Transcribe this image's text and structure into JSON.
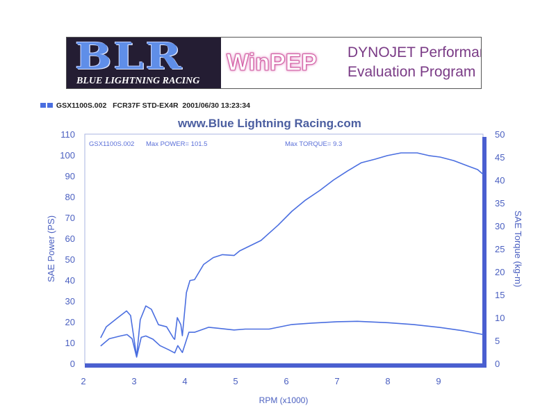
{
  "banner": {
    "logo_big": "BLR",
    "logo_small": "BLUE LIGHTNING RACING",
    "winpep": "WinPEP",
    "dynojet_line1": "DYNOJET Performance",
    "dynojet_line2": "Evaluation Program"
  },
  "legend": {
    "text": "GSX1100S.002   FCR37F STD-EX4R  2001/06/30 13:23:34"
  },
  "chart_data": {
    "type": "line",
    "title": "www.Blue Lightning Racing.com",
    "xlabel": "RPM (x1000)",
    "ylabel": "SAE Power (PS)",
    "y2label": "SAE Torque (kg-m)",
    "xlim": [
      2,
      9.9
    ],
    "ylim": [
      0,
      110
    ],
    "y2lim": [
      0,
      50
    ],
    "xticks": [
      2,
      3,
      4,
      5,
      6,
      7,
      8,
      9
    ],
    "yticks": [
      0,
      10,
      20,
      30,
      40,
      50,
      60,
      70,
      80,
      90,
      100,
      110
    ],
    "y2ticks": [
      0,
      5,
      10,
      15,
      20,
      25,
      30,
      35,
      40,
      45,
      50
    ],
    "annotations": {
      "run": "GSX1100S.002",
      "max_power": "Max POWER= 101.5",
      "max_torque": "Max TORQUE= 9.3"
    },
    "color": "#4a6ee0",
    "series": [
      {
        "name": "SAE Power (PS)",
        "axis": "left",
        "x": [
          2.34,
          2.45,
          2.68,
          2.85,
          2.93,
          3.05,
          3.12,
          3.23,
          3.34,
          3.48,
          3.64,
          3.78,
          3.8,
          3.85,
          3.92,
          3.95,
          4.03,
          4.1,
          4.19,
          4.37,
          4.56,
          4.74,
          4.97,
          5.08,
          5.5,
          5.84,
          6.11,
          6.38,
          6.66,
          6.93,
          7.21,
          7.48,
          7.75,
          7.99,
          8.26,
          8.58,
          8.81,
          9.03,
          9.3,
          9.58,
          9.77,
          9.88
        ],
        "y": [
          12.3,
          17.6,
          22,
          25.2,
          23,
          3.3,
          21,
          27.6,
          26,
          18.6,
          17.6,
          12,
          11.6,
          22,
          18.6,
          13.3,
          34,
          39.8,
          40.2,
          47.5,
          50.8,
          52.2,
          51.8,
          54,
          59,
          66.4,
          73,
          78.4,
          83,
          88,
          92.4,
          96.3,
          98,
          99.7,
          101,
          101,
          99.7,
          99,
          97.3,
          94.7,
          93,
          90.7
        ]
      },
      {
        "name": "SAE Torque (kg-m)",
        "axis": "right",
        "x": [
          2.34,
          2.51,
          2.73,
          2.86,
          2.96,
          3.05,
          3.14,
          3.23,
          3.37,
          3.51,
          3.68,
          3.8,
          3.86,
          3.95,
          4.08,
          4.19,
          4.47,
          4.64,
          4.97,
          5.19,
          5.66,
          6.11,
          6.5,
          7.0,
          7.4,
          8.0,
          8.5,
          9.0,
          9.5,
          9.88
        ],
        "y": [
          3.8,
          5.4,
          6.0,
          6.3,
          5.4,
          1.4,
          5.7,
          6.0,
          5.3,
          3.9,
          3.0,
          2.3,
          3.9,
          2.4,
          6.8,
          6.8,
          7.9,
          7.7,
          7.3,
          7.5,
          7.5,
          8.5,
          8.8,
          9.1,
          9.2,
          8.9,
          8.5,
          7.9,
          7.1,
          6.3
        ]
      }
    ]
  }
}
